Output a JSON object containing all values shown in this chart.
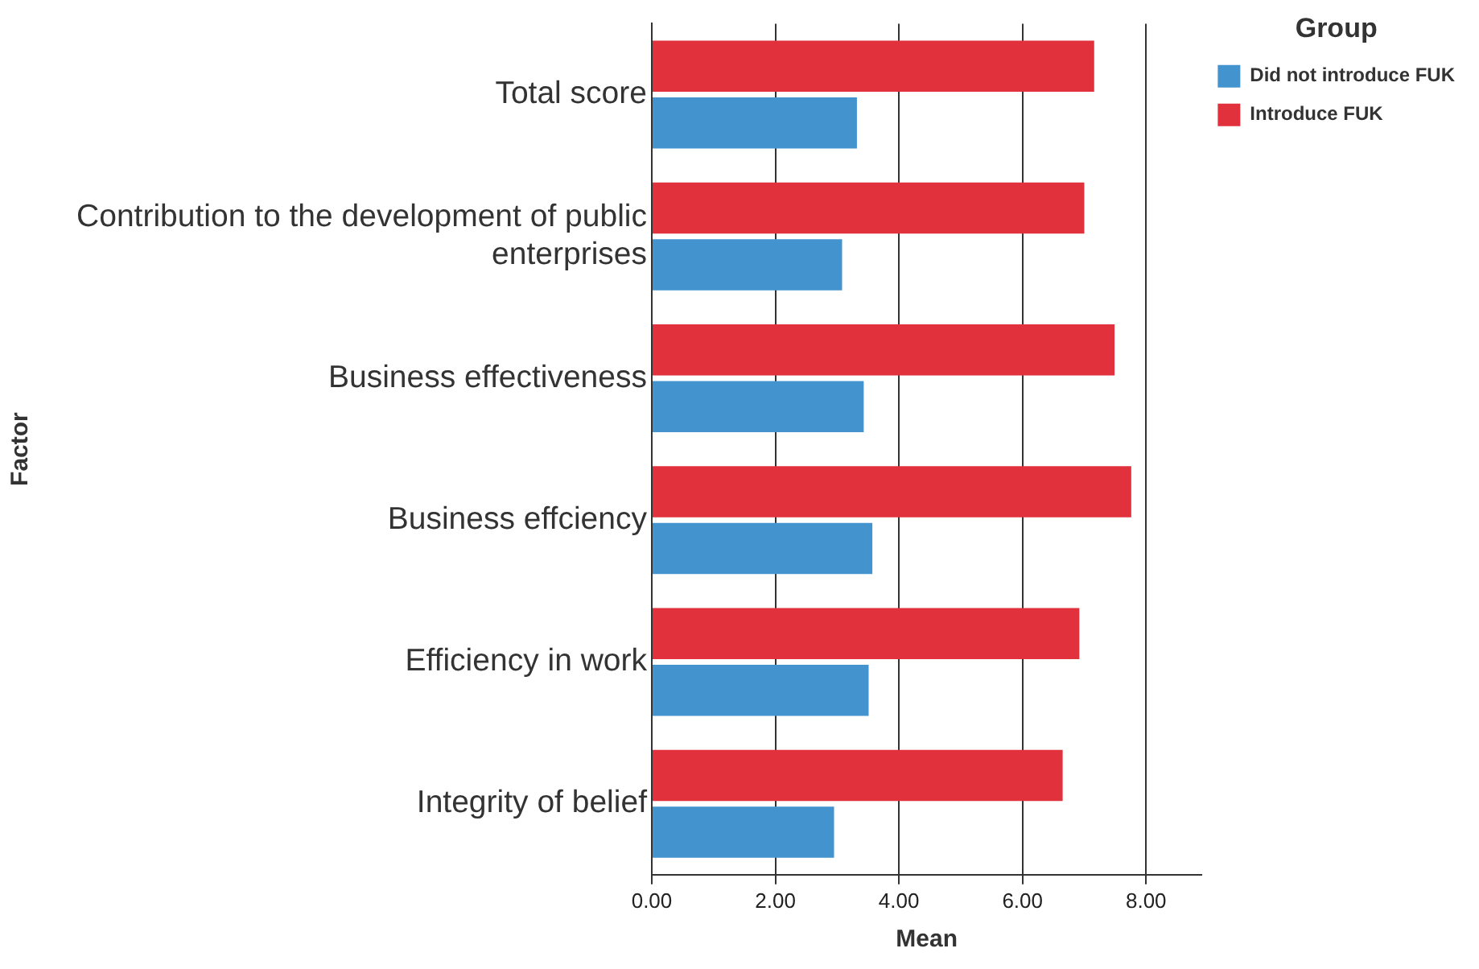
{
  "chart_data": {
    "type": "bar",
    "orientation": "horizontal",
    "xlabel": "Mean",
    "ylabel": "Factor",
    "legend_title": "Group",
    "legend": "top right",
    "grid": "x",
    "categories": [
      "Total score",
      "Contribution to the development of public enterprises",
      "Business effectiveness",
      "Business effciency",
      "Efficiency in work",
      "Integrity of belief"
    ],
    "series": [
      {
        "name": "Introduce FUK",
        "color": "#e0313c",
        "values": [
          7.16,
          7.0,
          7.49,
          7.76,
          6.92,
          6.65
        ]
      },
      {
        "name": "Did not introduce FUK",
        "color": "#4393cf",
        "values": [
          3.32,
          3.08,
          3.43,
          3.57,
          3.51,
          2.95
        ]
      }
    ],
    "xlim": [
      0,
      8.9
    ],
    "xticks": [
      {
        "value": 0,
        "label": "0.00"
      },
      {
        "value": 2,
        "label": "2.00"
      },
      {
        "value": 4,
        "label": "4.00"
      },
      {
        "value": 6,
        "label": "6.00"
      },
      {
        "value": 8,
        "label": "8.00"
      }
    ]
  }
}
